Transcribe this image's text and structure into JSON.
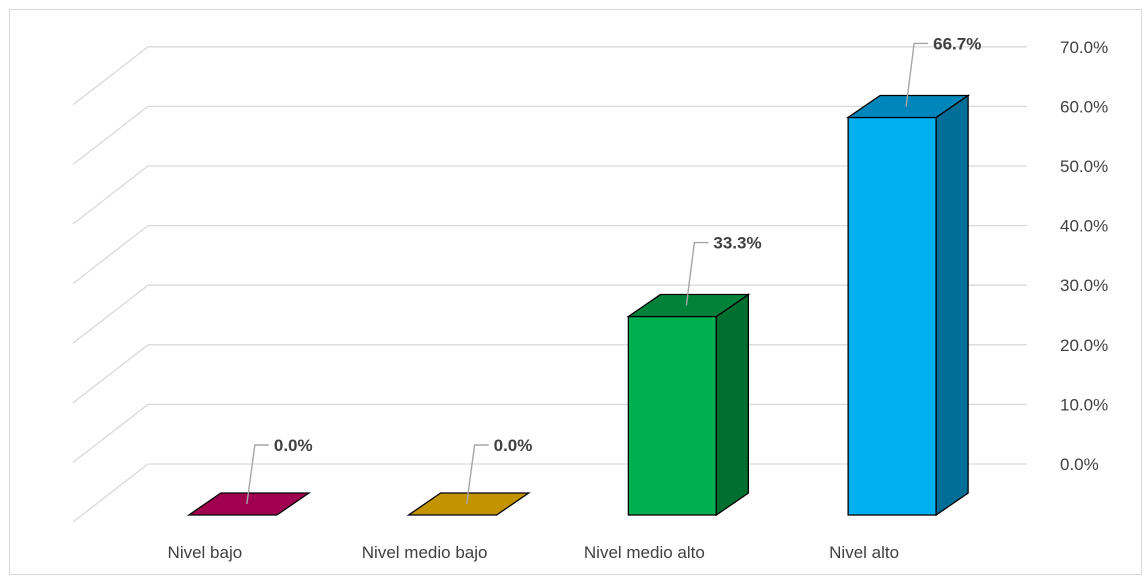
{
  "chart_data": {
    "type": "bar",
    "style": "3d-column",
    "categories": [
      "Nivel bajo",
      "Nivel medio bajo",
      "Nivel medio alto",
      "Nivel alto"
    ],
    "values": [
      0.0,
      0.0,
      33.3,
      66.7
    ],
    "data_labels": [
      "0.0%",
      "0.0%",
      "33.3%",
      "66.7%"
    ],
    "colors": {
      "Nivel bajo": {
        "front": "#a0004f",
        "side": "#6e0037",
        "top": "#a0004f"
      },
      "Nivel medio bajo": {
        "front": "#c49300",
        "side": "#8a6700",
        "top": "#c49300"
      },
      "Nivel medio alto": {
        "front": "#00b050",
        "side": "#007030",
        "top": "#00823b"
      },
      "Nivel alto": {
        "front": "#00b0f0",
        "side": "#006e97",
        "top": "#0086bb"
      }
    },
    "y_axis": {
      "position": "right",
      "min": 0,
      "max": 70,
      "step": 10,
      "tick_labels": [
        "0.0%",
        "10.0%",
        "20.0%",
        "30.0%",
        "40.0%",
        "50.0%",
        "60.0%",
        "70.0%"
      ]
    },
    "grid": true,
    "gridline_color": "#d9d9d9",
    "legend": "none",
    "title": "",
    "xlabel": "",
    "ylabel": ""
  }
}
